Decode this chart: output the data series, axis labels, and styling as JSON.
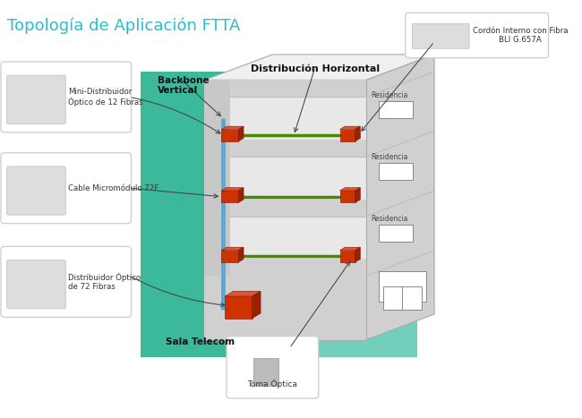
{
  "title": "Topología de Aplicación FTTA",
  "title_color": "#2ABECC",
  "title_fontsize": 13,
  "bg_color": "#FFFFFF",
  "labels": {
    "backbone": "Backbone\nVertical",
    "distribucion": "Distribución Horizontal",
    "sala_telecom": "Sala Telecom",
    "residencia": "Residencia",
    "mini_dist": "Mini-Distribuidor\nÓptico de 12 Fibras",
    "cable_micro": "Cable Micromódulo 72F",
    "dist_optico": "Distribuidor Óptico\nde 72 Fibras",
    "cordon": "Cordón Interno con Fibra\nBLI G.657A",
    "toma_optica": "Toma Óptica"
  },
  "teal_bg_dark": "#3CB89A",
  "teal_bg_light": "#72CFBC",
  "building_front": "#E8E8E8",
  "building_side": "#D0D0D0",
  "building_top": "#F0F0F0",
  "floor_shadow": "#C8C8C8",
  "backbone_line_color": "#55AADD",
  "distribution_line_color": "#4A8800",
  "box_red_front": "#CC3300",
  "box_red_top": "#DD5533",
  "box_red_side": "#992200"
}
